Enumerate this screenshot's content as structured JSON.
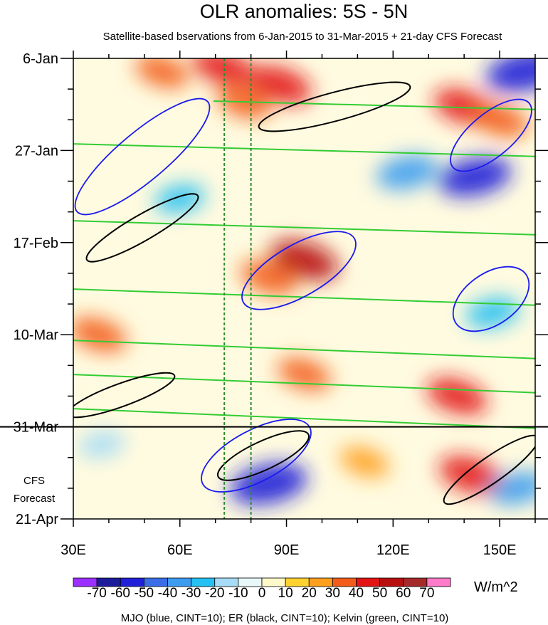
{
  "chart_data": {
    "type": "heatmap",
    "title": "OLR anomalies: 5S - 5N",
    "subtitle": "Satellite-based bservations from 6-Jan-2015 to 31-Mar-2015 + 21-day CFS Forecast",
    "x_axis": {
      "range": [
        30,
        160
      ],
      "ticks": [
        {
          "value": 30,
          "label": "30E"
        },
        {
          "value": 60,
          "label": "60E"
        },
        {
          "value": 90,
          "label": "90E"
        },
        {
          "value": 120,
          "label": "120E"
        },
        {
          "value": 150,
          "label": "150E"
        }
      ]
    },
    "y_axis": {
      "range_days": [
        0,
        105
      ],
      "ticks": [
        {
          "day": 0,
          "label": "6-Jan"
        },
        {
          "day": 21,
          "label": "27-Jan"
        },
        {
          "day": 42,
          "label": "17-Feb"
        },
        {
          "day": 63,
          "label": "10-Mar"
        },
        {
          "day": 84,
          "label": "31-Mar"
        },
        {
          "day": 105,
          "label": "21-Apr"
        }
      ]
    },
    "forecast_start_day": 84,
    "forecast_label": [
      "CFS",
      "Forecast"
    ],
    "reference_longitudes": [
      72.5,
      80
    ],
    "colorbar": {
      "levels": [
        -70,
        -60,
        -50,
        -40,
        -30,
        -20,
        -10,
        0,
        10,
        20,
        30,
        40,
        50,
        60,
        70
      ],
      "tick_labels": [
        "-70",
        "-60",
        "-50",
        "-40",
        "-30",
        "-20",
        "-10",
        "0",
        "10",
        "20",
        "30",
        "40",
        "50",
        "60",
        "70"
      ],
      "colors": [
        "#9b30ff",
        "#1c1c9a",
        "#2020d8",
        "#3b6ee6",
        "#3c9cf0",
        "#26c0f2",
        "#a6dcf5",
        "#e8f8f8",
        "#fff8c8",
        "#ffd230",
        "#ff9f1e",
        "#f35c1a",
        "#e31414",
        "#b80f0f",
        "#a52a2a",
        "#ff7ac8"
      ],
      "units": "W/m^2"
    },
    "anomaly_regions": [
      {
        "lon": 55,
        "day": 3,
        "value": 30
      },
      {
        "lon": 72,
        "day": 2,
        "value": 40
      },
      {
        "lon": 88,
        "day": 6,
        "value": 45
      },
      {
        "lon": 78,
        "day": 10,
        "value": 30
      },
      {
        "lon": 140,
        "day": 11,
        "value": 40
      },
      {
        "lon": 150,
        "day": 14,
        "value": 35
      },
      {
        "lon": 157,
        "day": 3,
        "value": -60
      },
      {
        "lon": 143,
        "day": 27,
        "value": -55
      },
      {
        "lon": 124,
        "day": 26,
        "value": -40
      },
      {
        "lon": 95,
        "day": 46,
        "value": 50
      },
      {
        "lon": 85,
        "day": 50,
        "value": 35
      },
      {
        "lon": 37,
        "day": 63,
        "value": 35
      },
      {
        "lon": 95,
        "day": 72,
        "value": 30
      },
      {
        "lon": 138,
        "day": 77,
        "value": 40
      },
      {
        "lon": 60,
        "day": 32,
        "value": -25
      },
      {
        "lon": 85,
        "day": 97,
        "value": -60
      },
      {
        "lon": 142,
        "day": 95,
        "value": 45
      },
      {
        "lon": 112,
        "day": 92,
        "value": 25
      },
      {
        "lon": 155,
        "day": 98,
        "value": -35
      },
      {
        "lon": 148,
        "day": 58,
        "value": -30
      },
      {
        "lon": 38,
        "day": 88,
        "value": -20
      }
    ],
    "contour_legend": "MJO (blue, CINT=10); ER (black, CINT=10); Kelvin (green, CINT=10)",
    "series": [
      {
        "name": "MJO",
        "color": "blue",
        "cint": 10
      },
      {
        "name": "ER",
        "color": "black",
        "cint": 10
      },
      {
        "name": "Kelvin",
        "color": "green",
        "cint": 10
      }
    ]
  }
}
